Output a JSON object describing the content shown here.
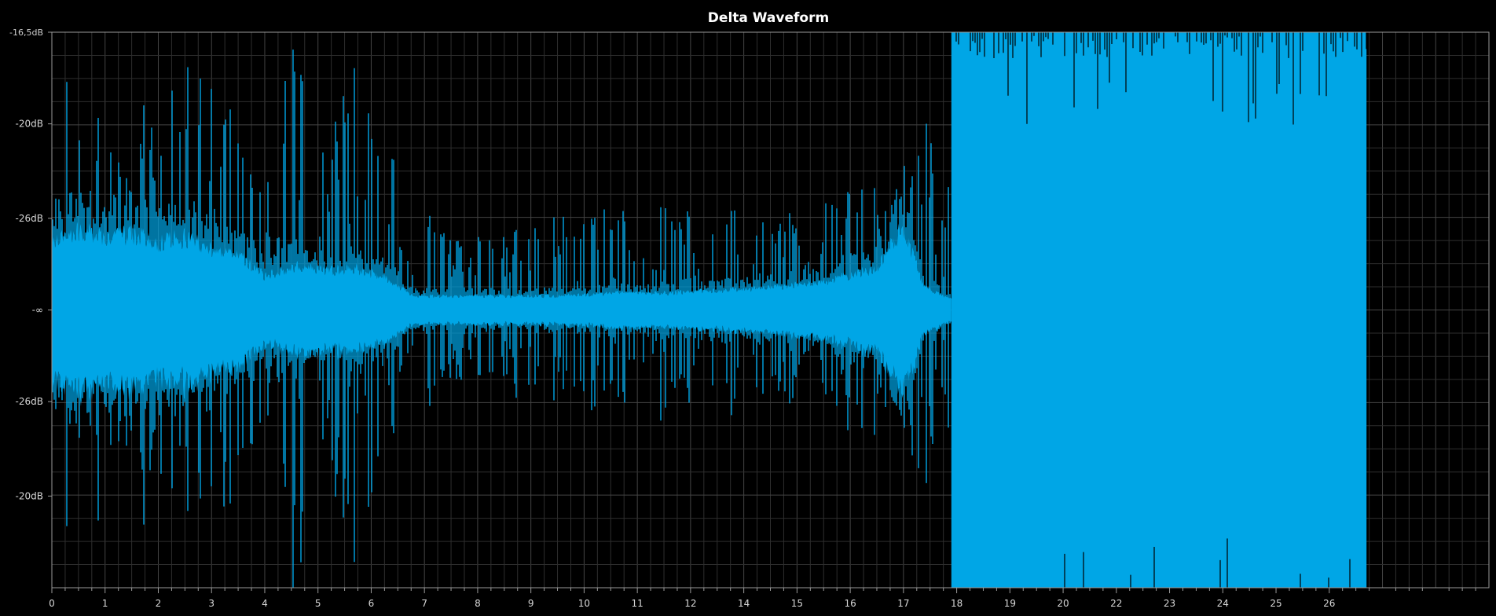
{
  "chart_data": {
    "type": "area",
    "title": "Delta Waveform",
    "xlabel": "",
    "ylabel": "",
    "x_range": [
      0,
      27
    ],
    "x_ticks": [
      {
        "value": 0,
        "label": "0"
      },
      {
        "value": 1,
        "label": "1"
      },
      {
        "value": 2,
        "label": "2"
      },
      {
        "value": 3,
        "label": "3"
      },
      {
        "value": 4,
        "label": "4"
      },
      {
        "value": 5,
        "label": "5"
      },
      {
        "value": 6,
        "label": "6"
      },
      {
        "value": 7,
        "label": "7"
      },
      {
        "value": 8,
        "label": "8"
      },
      {
        "value": 9,
        "label": "9"
      },
      {
        "value": 10,
        "label": "10"
      },
      {
        "value": 11,
        "label": "11"
      },
      {
        "value": 12,
        "label": "12"
      },
      {
        "value": 13,
        "label": "14"
      },
      {
        "value": 14,
        "label": "15"
      },
      {
        "value": 15,
        "label": "16"
      },
      {
        "value": 16,
        "label": "17"
      },
      {
        "value": 17,
        "label": "18"
      },
      {
        "value": 18,
        "label": "19"
      },
      {
        "value": 19,
        "label": "20"
      },
      {
        "value": 20,
        "label": "22"
      },
      {
        "value": 21,
        "label": "23"
      },
      {
        "value": 22,
        "label": "24"
      },
      {
        "value": 23,
        "label": "25"
      },
      {
        "value": 24,
        "label": "26"
      }
    ],
    "y_range": [
      -1,
      1
    ],
    "y_ticks": [
      {
        "value": 1,
        "label": "-16,5dB"
      },
      {
        "value": 0.67,
        "label": "-20dB"
      },
      {
        "value": 0.33,
        "label": "-26dB"
      },
      {
        "value": 0,
        "label": "-∞"
      },
      {
        "value": -0.33,
        "label": "-26dB"
      },
      {
        "value": -0.67,
        "label": "-20dB"
      }
    ],
    "grid": true,
    "colors": {
      "waveform": "#00a6e6",
      "background": "#000000",
      "grid": "#2e2e2e",
      "grid_major": "#444444",
      "axis": "#9a9a9a"
    },
    "series": [
      {
        "envelope": [
          {
            "x": 0.0,
            "peak": 0.8,
            "body": 0.25
          },
          {
            "x": 0.5,
            "peak": 0.88,
            "body": 0.28
          },
          {
            "x": 1.0,
            "peak": 0.72,
            "body": 0.26
          },
          {
            "x": 1.5,
            "peak": 0.8,
            "body": 0.27
          },
          {
            "x": 2.0,
            "peak": 0.78,
            "body": 0.24
          },
          {
            "x": 2.5,
            "peak": 0.95,
            "body": 0.26
          },
          {
            "x": 3.0,
            "peak": 0.82,
            "body": 0.22
          },
          {
            "x": 3.5,
            "peak": 0.7,
            "body": 0.2
          },
          {
            "x": 4.0,
            "peak": 0.55,
            "body": 0.12
          },
          {
            "x": 4.6,
            "peak": 1.0,
            "body": 0.16
          },
          {
            "x": 5.2,
            "peak": 0.72,
            "body": 0.14
          },
          {
            "x": 5.7,
            "peak": 1.0,
            "body": 0.15
          },
          {
            "x": 6.2,
            "peak": 0.65,
            "body": 0.12
          },
          {
            "x": 6.8,
            "peak": 0.4,
            "body": 0.05
          },
          {
            "x": 7.5,
            "peak": 0.3,
            "body": 0.05
          },
          {
            "x": 8.5,
            "peak": 0.3,
            "body": 0.05
          },
          {
            "x": 9.5,
            "peak": 0.35,
            "body": 0.05
          },
          {
            "x": 10.5,
            "peak": 0.38,
            "body": 0.06
          },
          {
            "x": 11.5,
            "peak": 0.37,
            "body": 0.06
          },
          {
            "x": 12.5,
            "peak": 0.36,
            "body": 0.07
          },
          {
            "x": 13.5,
            "peak": 0.38,
            "body": 0.08
          },
          {
            "x": 14.5,
            "peak": 0.4,
            "body": 0.1
          },
          {
            "x": 15.5,
            "peak": 0.48,
            "body": 0.15
          },
          {
            "x": 16.0,
            "peak": 0.58,
            "body": 0.3
          },
          {
            "x": 16.4,
            "peak": 0.7,
            "body": 0.08
          },
          {
            "x": 16.9,
            "peak": 0.62,
            "body": 0.04
          }
        ],
        "dense_from_x": 16.9,
        "dense_to_x": 24.7,
        "dense_level": 1.0
      }
    ]
  }
}
